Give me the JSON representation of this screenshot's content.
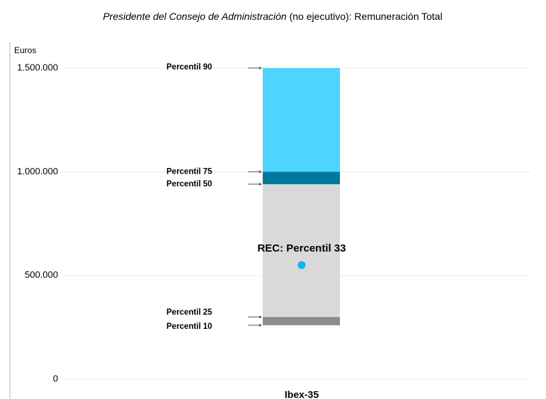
{
  "chart_data": {
    "type": "percentile-bar",
    "title_italic": "Presidente del Consejo de Administración",
    "title_rest": " (no ejecutivo): Remuneración Total",
    "ylabel": "Euros",
    "category": "Ibex-35",
    "percentile_labels": [
      "Percentil 10",
      "Percentil 25",
      "Percentil 50",
      "Percentil 75",
      "Percentil 90"
    ],
    "values": [
      260000,
      300000,
      940000,
      1000000,
      1500000
    ],
    "colors": [
      "#8c8c8c",
      "#d9d9d9",
      "#00789c",
      "#4dd4ff"
    ],
    "point": {
      "label": "REC:  Percentil 33",
      "value": 550000,
      "color": "#1ab0f0"
    },
    "ylim": [
      0,
      1500000
    ],
    "yticks": [
      0,
      {
        "value": 500000,
        "label": "500.000"
      },
      {
        "value": 1000000,
        "label": "1.000.000"
      },
      {
        "value": 1500000,
        "label": "1.500.000"
      }
    ],
    "grid": true
  }
}
